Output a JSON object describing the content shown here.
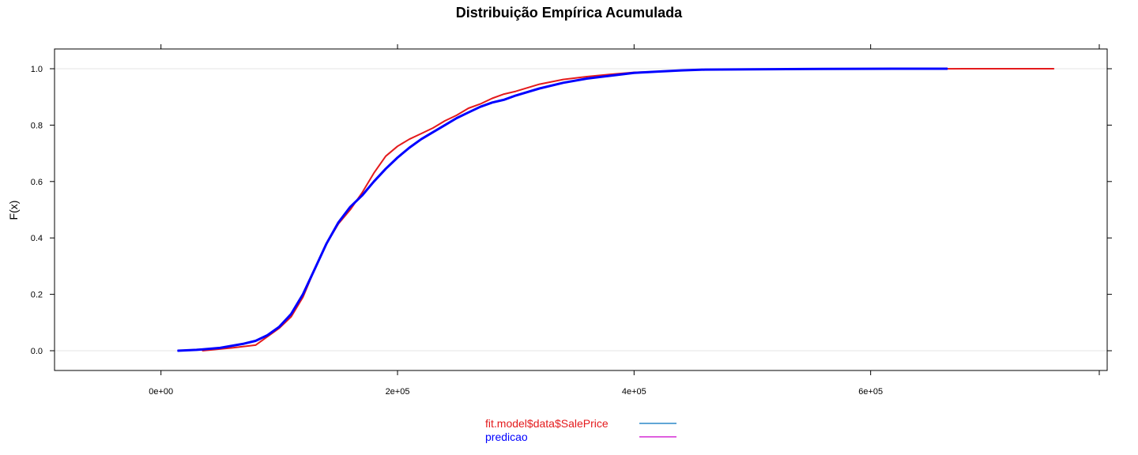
{
  "chart_data": {
    "type": "line",
    "title": "Distribuição Empírica Acumulada",
    "xlabel": "",
    "ylabel": "F(x)",
    "xlim": [
      -90000,
      800000
    ],
    "ylim": [
      -0.07,
      1.07
    ],
    "x_ticks": [
      {
        "value": 0,
        "label": "0e+00"
      },
      {
        "value": 200000,
        "label": "2e+05"
      },
      {
        "value": 400000,
        "label": "4e+05"
      },
      {
        "value": 600000,
        "label": "6e+05"
      }
    ],
    "y_ticks": [
      {
        "value": 0.0,
        "label": "0.0"
      },
      {
        "value": 0.2,
        "label": "0.2"
      },
      {
        "value": 0.4,
        "label": "0.4"
      },
      {
        "value": 0.6,
        "label": "0.6"
      },
      {
        "value": 0.8,
        "label": "0.8"
      },
      {
        "value": 1.0,
        "label": "1.0"
      }
    ],
    "grid": "horizontal reference lines at 0 and 1",
    "legend_position": "bottom-center",
    "series": [
      {
        "name": "fit.model$data$SalePrice",
        "color": "#e41a1c",
        "legend_swatch_color": "#0072bd",
        "x": [
          35000,
          60000,
          80000,
          90000,
          100000,
          110000,
          120000,
          130000,
          140000,
          150000,
          160000,
          170000,
          180000,
          190000,
          200000,
          210000,
          220000,
          230000,
          240000,
          250000,
          260000,
          270000,
          280000,
          290000,
          300000,
          320000,
          340000,
          360000,
          380000,
          400000,
          420000,
          440000,
          460000,
          500000,
          560000,
          620000,
          680000,
          755000
        ],
        "values": [
          0.0,
          0.01,
          0.02,
          0.05,
          0.08,
          0.12,
          0.19,
          0.29,
          0.38,
          0.45,
          0.5,
          0.56,
          0.63,
          0.69,
          0.725,
          0.75,
          0.77,
          0.79,
          0.815,
          0.835,
          0.86,
          0.875,
          0.895,
          0.91,
          0.92,
          0.945,
          0.962,
          0.972,
          0.98,
          0.987,
          0.99,
          0.994,
          0.997,
          0.998,
          0.999,
          0.999,
          1.0,
          1.0
        ]
      },
      {
        "name": "predicao",
        "color": "#0000ff",
        "legend_swatch_color": "#cc00cc",
        "x": [
          14000,
          30000,
          50000,
          70000,
          80000,
          90000,
          100000,
          110000,
          120000,
          130000,
          140000,
          150000,
          160000,
          170000,
          180000,
          190000,
          200000,
          210000,
          220000,
          230000,
          240000,
          250000,
          260000,
          270000,
          280000,
          290000,
          300000,
          320000,
          340000,
          360000,
          380000,
          400000,
          420000,
          440000,
          460000,
          500000,
          560000,
          620000,
          665000
        ],
        "values": [
          0.0,
          0.003,
          0.01,
          0.025,
          0.035,
          0.055,
          0.085,
          0.13,
          0.2,
          0.29,
          0.38,
          0.455,
          0.51,
          0.55,
          0.6,
          0.645,
          0.685,
          0.72,
          0.75,
          0.775,
          0.8,
          0.825,
          0.845,
          0.865,
          0.88,
          0.89,
          0.905,
          0.93,
          0.95,
          0.965,
          0.975,
          0.985,
          0.99,
          0.994,
          0.997,
          0.998,
          0.999,
          1.0,
          1.0
        ]
      }
    ]
  }
}
